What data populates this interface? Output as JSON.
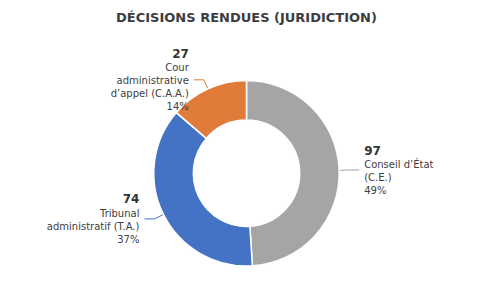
{
  "chart_data": {
    "type": "pie",
    "title": "DÉCISIONS RENDUES (JURIDICTION)",
    "categories": [
      "Conseil d’État\n(C.E.)\n49%",
      "Tribunal\nadministratif (T.A.)\n37%",
      "Cour\nadministrative\nd’appel (C.A.A.)\n14%"
    ],
    "values": [
      97,
      74,
      27
    ],
    "colors": [
      "#A5A5A5",
      "#4472C4",
      "#E07B39"
    ],
    "data_labels": true
  }
}
